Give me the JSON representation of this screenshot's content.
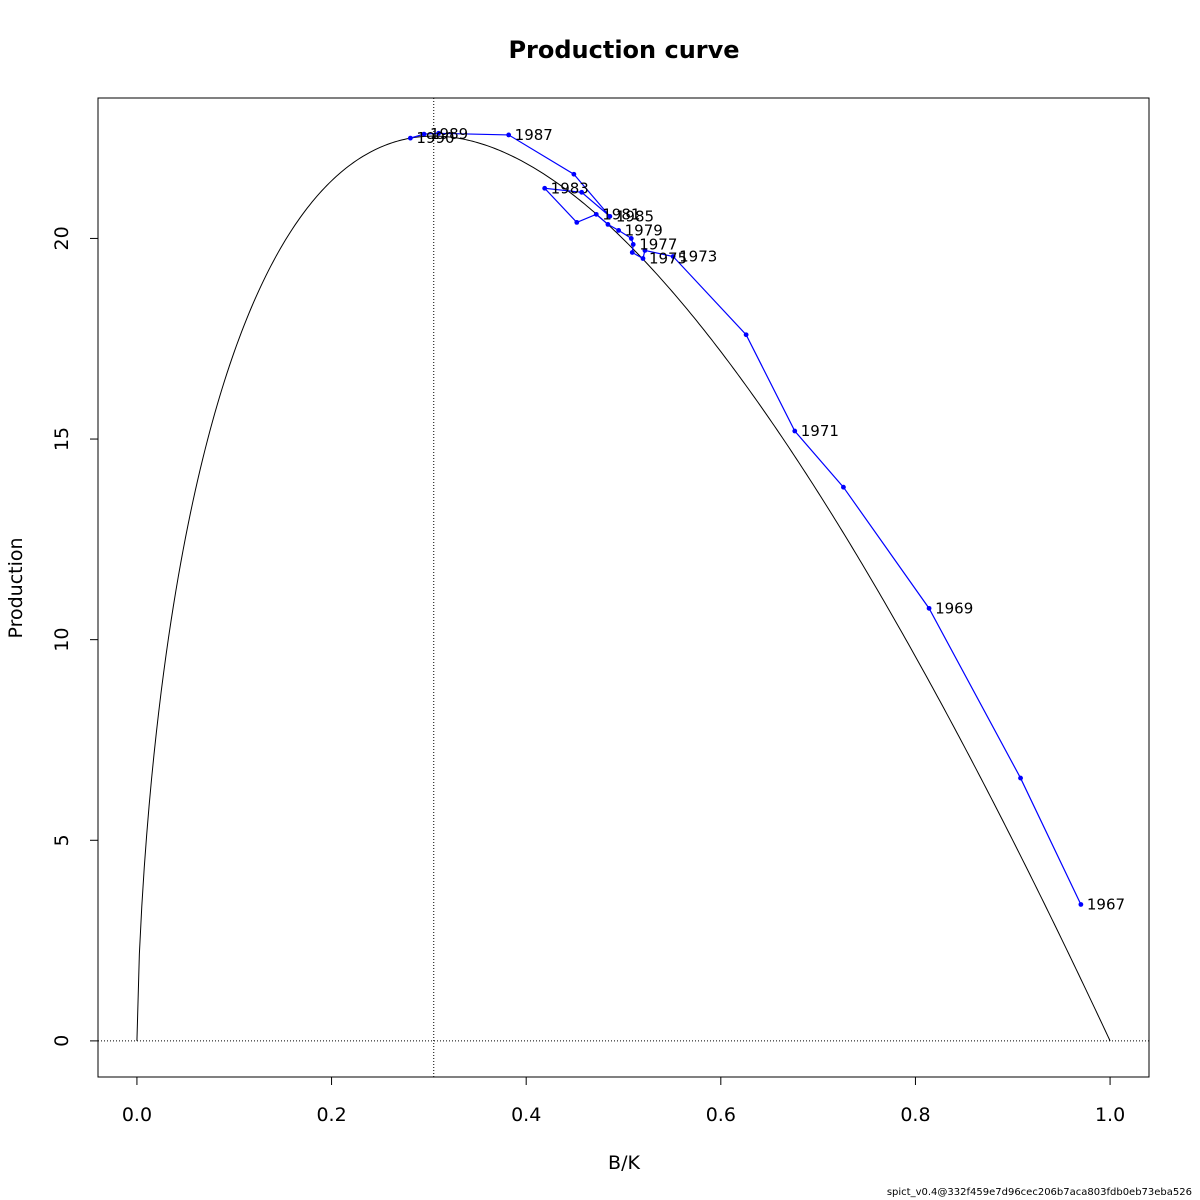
{
  "chart_data": {
    "type": "line",
    "title": "Production curve",
    "xlabel": "B/K",
    "ylabel": "Production",
    "xlim": [
      -0.04,
      1.04
    ],
    "ylim": [
      -0.9,
      23.5
    ],
    "x_ticks": [
      0.0,
      0.2,
      0.4,
      0.6,
      0.8,
      1.0
    ],
    "x_tick_labels": [
      "0.0",
      "0.2",
      "0.4",
      "0.6",
      "0.8",
      "1.0"
    ],
    "y_ticks": [
      0,
      5,
      10,
      15,
      20
    ],
    "y_tick_labels": [
      "0",
      "5",
      "10",
      "15",
      "20"
    ],
    "grid": false,
    "reference_lines": {
      "vertical_x": 0.305,
      "horizontal_y": 0
    },
    "theoretical_curve": {
      "name": "",
      "color": "#000000",
      "bmsy_over_k": 0.305,
      "max_production": 22.55
    },
    "series": [
      {
        "name": "",
        "color": "#0000ff",
        "points": [
          {
            "x": 0.97,
            "y": 3.4,
            "label": "1967"
          },
          {
            "x": 0.908,
            "y": 6.55,
            "label": ""
          },
          {
            "x": 0.814,
            "y": 10.78,
            "label": "1969"
          },
          {
            "x": 0.726,
            "y": 13.8,
            "label": ""
          },
          {
            "x": 0.676,
            "y": 15.2,
            "label": "1971"
          },
          {
            "x": 0.626,
            "y": 17.6,
            "label": ""
          },
          {
            "x": 0.551,
            "y": 19.55,
            "label": "1973"
          },
          {
            "x": 0.522,
            "y": 19.7,
            "label": ""
          },
          {
            "x": 0.52,
            "y": 19.5,
            "label": "1975"
          },
          {
            "x": 0.509,
            "y": 19.65,
            "label": ""
          },
          {
            "x": 0.51,
            "y": 19.85,
            "label": "1977"
          },
          {
            "x": 0.508,
            "y": 20.0,
            "label": ""
          },
          {
            "x": 0.495,
            "y": 20.2,
            "label": "1979"
          },
          {
            "x": 0.484,
            "y": 20.35,
            "label": ""
          },
          {
            "x": 0.472,
            "y": 20.6,
            "label": "1981"
          },
          {
            "x": 0.452,
            "y": 20.4,
            "label": ""
          },
          {
            "x": 0.419,
            "y": 21.25,
            "label": "1983"
          },
          {
            "x": 0.457,
            "y": 21.15,
            "label": ""
          },
          {
            "x": 0.486,
            "y": 20.55,
            "label": "1985"
          },
          {
            "x": 0.449,
            "y": 21.6,
            "label": ""
          },
          {
            "x": 0.382,
            "y": 22.58,
            "label": "1987"
          },
          {
            "x": 0.31,
            "y": 22.62,
            "label": ""
          },
          {
            "x": 0.295,
            "y": 22.6,
            "label": "1989"
          },
          {
            "x": 0.281,
            "y": 22.5,
            "label": "1990"
          }
        ]
      }
    ]
  },
  "footer": "spict_v0.4@332f459e7d96cec206b7aca803fdb0eb73eba526"
}
